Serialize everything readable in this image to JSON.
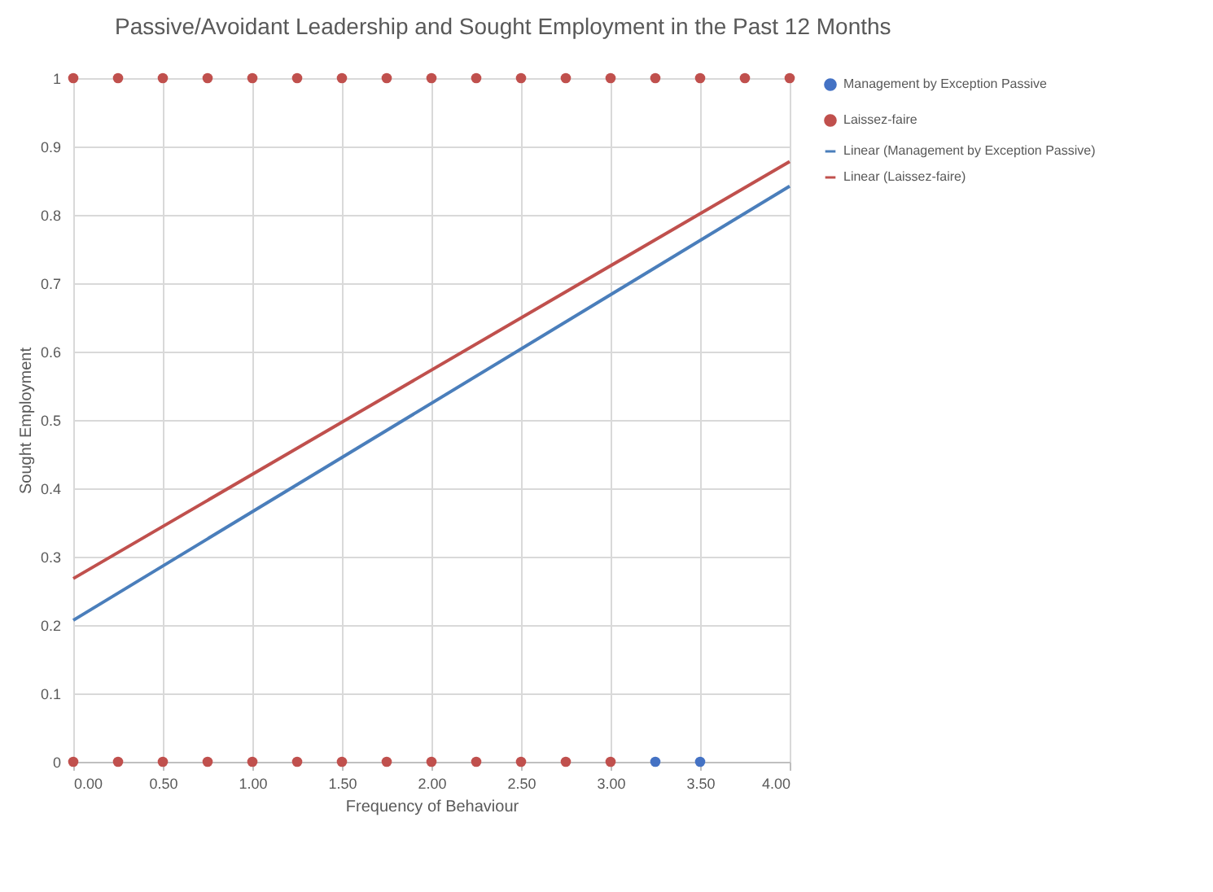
{
  "chart_data": {
    "type": "scatter",
    "title": "Passive/Avoidant Leadership and Sought Employment in the Past 12 Months",
    "xlabel": "Frequency of Behaviour",
    "ylabel": "Sought Employment",
    "xlim": [
      0,
      4
    ],
    "xticks": [
      {
        "value": 0,
        "label": "0.00"
      },
      {
        "value": 0.5,
        "label": "0.50"
      },
      {
        "value": 1,
        "label": "1.00"
      },
      {
        "value": 1.5,
        "label": "1.50"
      },
      {
        "value": 2,
        "label": "2.00"
      },
      {
        "value": 2.5,
        "label": "2.50"
      },
      {
        "value": 3,
        "label": "3.00"
      },
      {
        "value": 3.5,
        "label": "3.50"
      },
      {
        "value": 4,
        "label": "4.00"
      }
    ],
    "ylim": [
      0,
      1
    ],
    "yticks": [
      0,
      0.1,
      0.2,
      0.3,
      0.4,
      0.5,
      0.6,
      0.7,
      0.8,
      0.9,
      1
    ],
    "grid": true,
    "legend": "right",
    "series": [
      {
        "name": "Management by Exception Passive",
        "marker": "circle",
        "color": "#4472c4",
        "x": [
          3.25,
          3.5
        ],
        "values": [
          0,
          0
        ]
      },
      {
        "name": "Laissez-faire",
        "marker": "circle",
        "color": "#c0504d",
        "x": [
          0,
          0.25,
          0.5,
          0.75,
          1,
          1.25,
          1.5,
          1.75,
          2,
          2.25,
          2.5,
          2.75,
          3,
          3.25,
          3.5,
          3.75,
          4,
          0,
          0.25,
          0.5,
          0.75,
          1,
          1.25,
          1.5,
          1.75,
          2,
          2.25,
          2.5,
          2.75,
          3
        ],
        "values": [
          1,
          1,
          1,
          1,
          1,
          1,
          1,
          1,
          1,
          1,
          1,
          1,
          1,
          1,
          1,
          1,
          1,
          0,
          0,
          0,
          0,
          0,
          0,
          0,
          0,
          0,
          0,
          0,
          0,
          0
        ]
      },
      {
        "name": "Linear (Management by Exception Passive)",
        "type": "line",
        "marker": "none",
        "line_style": "solid",
        "color": "#4a7ebb",
        "x": [
          0,
          4
        ],
        "values": [
          0.207,
          0.842
        ]
      },
      {
        "name": "Linear (Laissez-faire)",
        "type": "line",
        "marker": "none",
        "line_style": "solid",
        "color": "#c0504d",
        "x": [
          0,
          4
        ],
        "values": [
          0.268,
          0.878
        ]
      }
    ]
  }
}
